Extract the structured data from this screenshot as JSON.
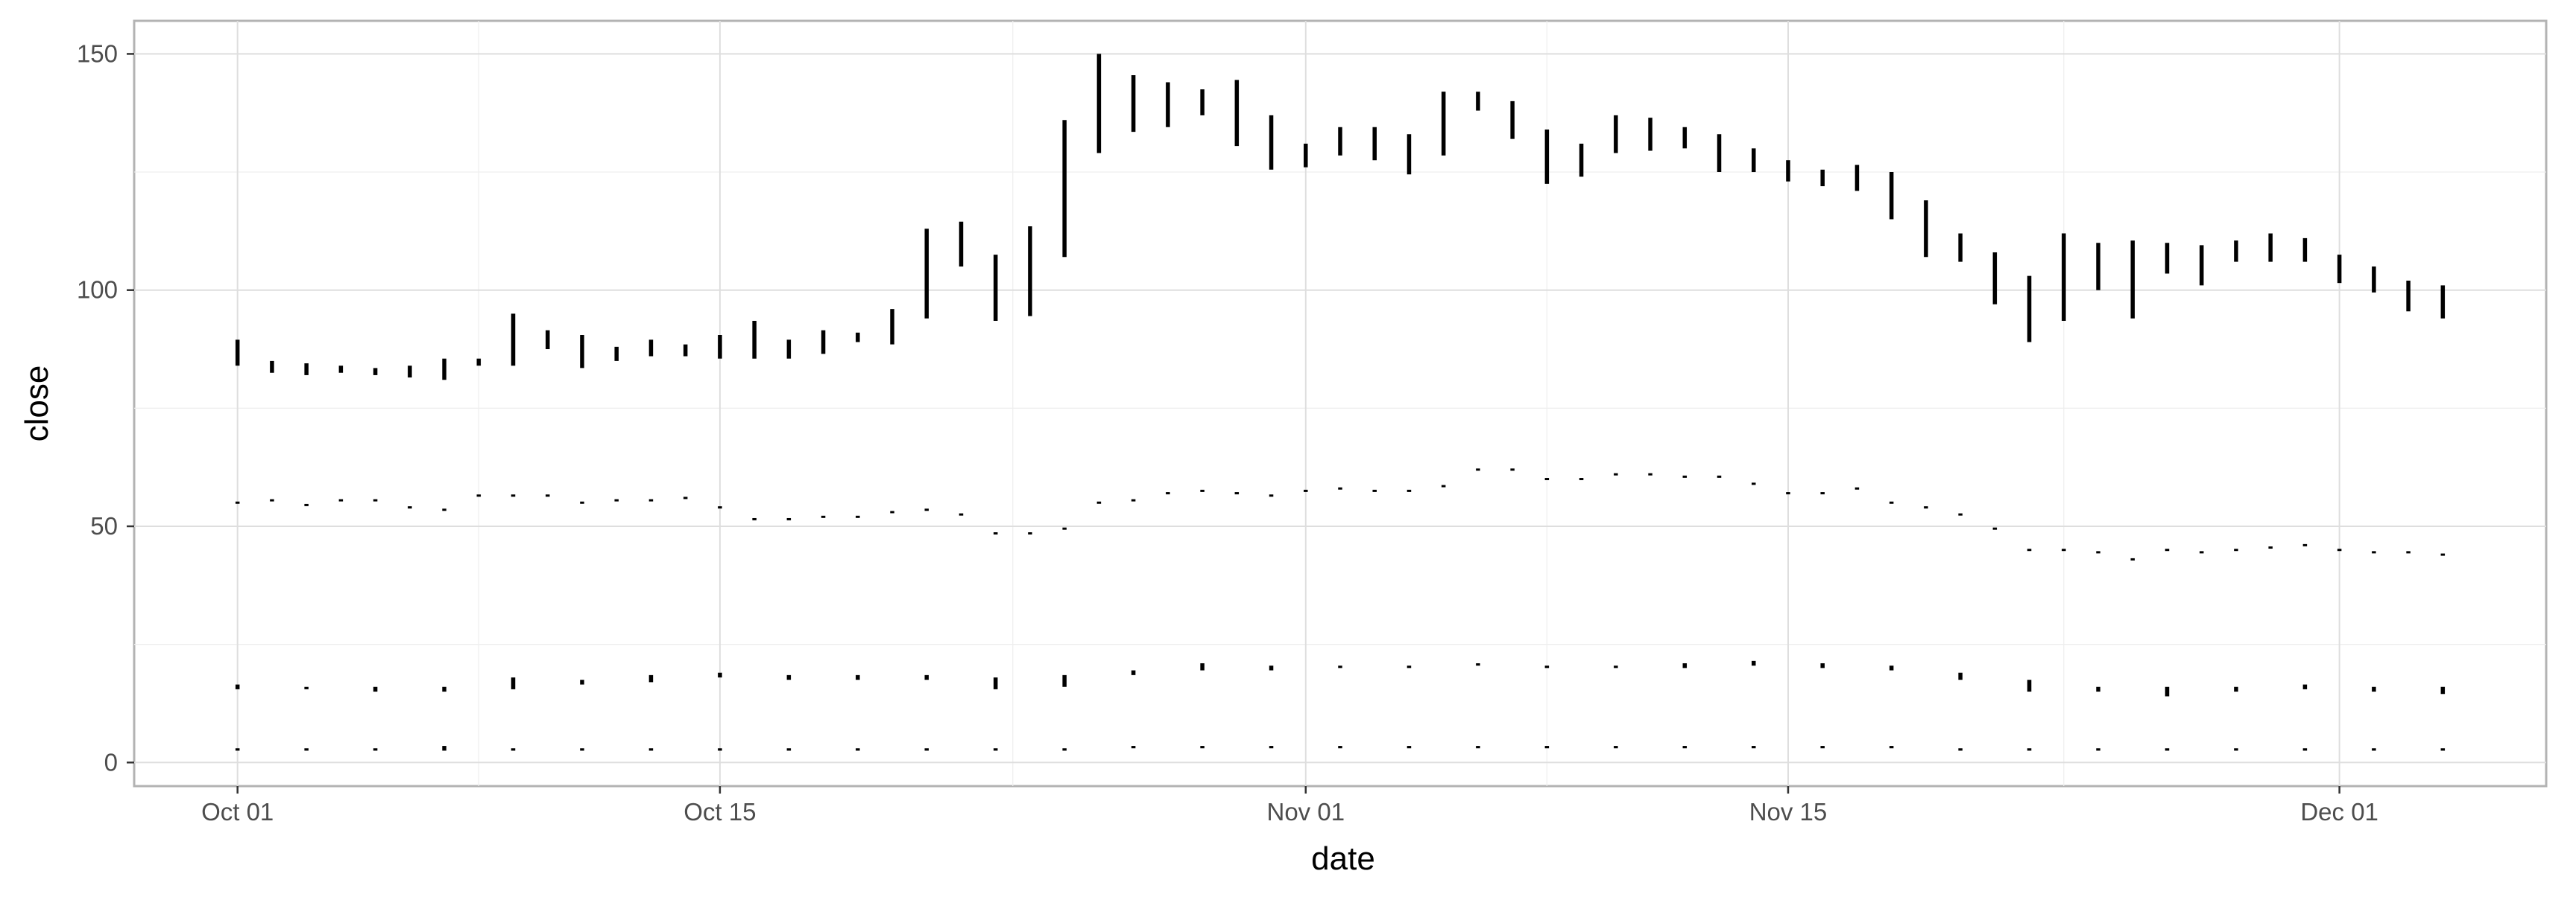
{
  "chart_data": {
    "type": "range-bar",
    "title": "",
    "xlabel": "date",
    "ylabel": "close",
    "xlim": [
      "2021-09-28",
      "2021-12-07"
    ],
    "ylim": [
      -5,
      157
    ],
    "x_ticks": [
      {
        "date": "2021-10-01",
        "label": "Oct 01"
      },
      {
        "date": "2021-10-15",
        "label": "Oct 15"
      },
      {
        "date": "2021-11-01",
        "label": "Nov 01"
      },
      {
        "date": "2021-11-15",
        "label": "Nov 15"
      },
      {
        "date": "2021-12-01",
        "label": "Dec 01"
      }
    ],
    "y_ticks": [
      0,
      50,
      100,
      150
    ],
    "grid": true,
    "legend": "none",
    "bar_color": "#000000",
    "series": [
      {
        "dates": [
          "2021-10-01",
          "2021-10-02",
          "2021-10-03",
          "2021-10-04",
          "2021-10-05",
          "2021-10-06",
          "2021-10-07",
          "2021-10-08",
          "2021-10-09",
          "2021-10-10",
          "2021-10-11",
          "2021-10-12",
          "2021-10-13",
          "2021-10-14",
          "2021-10-15",
          "2021-10-16",
          "2021-10-17",
          "2021-10-18",
          "2021-10-19",
          "2021-10-20",
          "2021-10-21",
          "2021-10-22",
          "2021-10-23",
          "2021-10-24",
          "2021-10-25",
          "2021-10-26",
          "2021-10-27",
          "2021-10-28",
          "2021-10-29",
          "2021-10-30",
          "2021-10-31",
          "2021-11-01",
          "2021-11-02",
          "2021-11-03",
          "2021-11-04",
          "2021-11-05",
          "2021-11-06",
          "2021-11-07",
          "2021-11-08",
          "2021-11-09",
          "2021-11-10",
          "2021-11-11",
          "2021-11-12",
          "2021-11-13",
          "2021-11-14",
          "2021-11-15",
          "2021-11-16",
          "2021-11-17",
          "2021-11-18",
          "2021-11-19",
          "2021-11-20",
          "2021-11-21",
          "2021-11-22",
          "2021-11-23",
          "2021-11-24",
          "2021-11-25",
          "2021-11-26",
          "2021-11-27",
          "2021-11-28",
          "2021-11-29",
          "2021-11-30",
          "2021-12-01",
          "2021-12-02",
          "2021-12-03",
          "2021-12-04"
        ],
        "low": [
          84,
          82.5,
          82,
          82.5,
          82,
          81.5,
          81,
          84,
          84,
          87.5,
          83.5,
          85,
          86,
          86,
          85.5,
          85.5,
          85.5,
          86.5,
          89,
          88.5,
          94,
          105,
          93.5,
          94.5,
          107,
          129,
          133.5,
          134.5,
          137,
          130.5,
          125.5,
          126,
          128.5,
          127.5,
          124.5,
          128.5,
          138,
          132,
          122.5,
          124,
          129,
          129.5,
          130,
          125,
          125,
          123,
          122,
          121,
          115,
          107,
          106,
          97,
          89,
          93.5,
          100,
          94,
          103.5,
          101,
          106,
          106,
          106,
          101.5,
          99.5,
          95.5,
          94
        ],
        "high": [
          89.5,
          85,
          84.5,
          84,
          83.5,
          84,
          85.5,
          85.5,
          95,
          91.5,
          90.5,
          88,
          89.5,
          88.5,
          90.5,
          93.5,
          89.5,
          91.5,
          91,
          96,
          113,
          114.5,
          107.5,
          113.5,
          136,
          150,
          145.5,
          144,
          142.5,
          144.5,
          137,
          131,
          134.5,
          134.5,
          133,
          142,
          142,
          140,
          134,
          131,
          137,
          136.5,
          134.5,
          133,
          130,
          127.5,
          125.5,
          126.5,
          125,
          119,
          112,
          108,
          103,
          112,
          110,
          110.5,
          110,
          109.5,
          110.5,
          112,
          111,
          107.5,
          105,
          102,
          101
        ]
      },
      {
        "dates": [
          "2021-10-01",
          "2021-10-02",
          "2021-10-03",
          "2021-10-04",
          "2021-10-05",
          "2021-10-06",
          "2021-10-07",
          "2021-10-08",
          "2021-10-09",
          "2021-10-10",
          "2021-10-11",
          "2021-10-12",
          "2021-10-13",
          "2021-10-14",
          "2021-10-15",
          "2021-10-16",
          "2021-10-17",
          "2021-10-18",
          "2021-10-19",
          "2021-10-20",
          "2021-10-21",
          "2021-10-22",
          "2021-10-23",
          "2021-10-24",
          "2021-10-25",
          "2021-10-26",
          "2021-10-27",
          "2021-10-28",
          "2021-10-29",
          "2021-10-30",
          "2021-10-31",
          "2021-11-01",
          "2021-11-02",
          "2021-11-03",
          "2021-11-04",
          "2021-11-05",
          "2021-11-06",
          "2021-11-07",
          "2021-11-08",
          "2021-11-09",
          "2021-11-10",
          "2021-11-11",
          "2021-11-12",
          "2021-11-13",
          "2021-11-14",
          "2021-11-15",
          "2021-11-16",
          "2021-11-17",
          "2021-11-18",
          "2021-11-19",
          "2021-11-20",
          "2021-11-21",
          "2021-11-22",
          "2021-11-23",
          "2021-11-24",
          "2021-11-25",
          "2021-11-26",
          "2021-11-27",
          "2021-11-28",
          "2021-11-29",
          "2021-11-30",
          "2021-12-01",
          "2021-12-02",
          "2021-12-03",
          "2021-12-04"
        ],
        "low": [
          55,
          55.5,
          54.5,
          55.5,
          55.5,
          54,
          53.5,
          56.5,
          56.5,
          56.5,
          55,
          55.5,
          55.5,
          56,
          54,
          51.5,
          51.5,
          52,
          52,
          53,
          53.5,
          52.5,
          48.5,
          48.5,
          49.5,
          55,
          55.5,
          57,
          57.5,
          57,
          56.5,
          57.5,
          58,
          57.5,
          57.5,
          58.5,
          62,
          62,
          60,
          60,
          61,
          61,
          60.5,
          60.5,
          59,
          57,
          57,
          58,
          55,
          54,
          52.5,
          49.5,
          45,
          45,
          44.5,
          43,
          45,
          44.5,
          45,
          45.5,
          46,
          45,
          44.5,
          44.5,
          44
        ]
      },
      {
        "dates": [
          "2021-10-01",
          "2021-10-03",
          "2021-10-05",
          "2021-10-07",
          "2021-10-09",
          "2021-10-11",
          "2021-10-13",
          "2021-10-15",
          "2021-10-17",
          "2021-10-19",
          "2021-10-21",
          "2021-10-23",
          "2021-10-25",
          "2021-10-27",
          "2021-10-29",
          "2021-10-31",
          "2021-11-02",
          "2021-11-04",
          "2021-11-06",
          "2021-11-08",
          "2021-11-10",
          "2021-11-12",
          "2021-11-14",
          "2021-11-16",
          "2021-11-18",
          "2021-11-20",
          "2021-11-22",
          "2021-11-24",
          "2021-11-26",
          "2021-11-28",
          "2021-11-30",
          "2021-12-02",
          "2021-12-04"
        ],
        "low": [
          15.5,
          15.5,
          15,
          15,
          15.5,
          16.5,
          17,
          18,
          17.5,
          17.5,
          17.5,
          15.5,
          16,
          18.5,
          19.5,
          19.5,
          20,
          20,
          20.5,
          20,
          20,
          20,
          20.5,
          20,
          19.5,
          17.5,
          15,
          15,
          14,
          15,
          15.5,
          15,
          14.5
        ],
        "high": [
          16.5,
          16,
          16,
          16,
          18,
          17.5,
          18.5,
          19,
          18.5,
          18.5,
          18.5,
          18,
          18.5,
          19.5,
          21,
          20.5,
          20.5,
          20.5,
          21,
          20.5,
          20.5,
          21,
          21.5,
          21,
          20.5,
          19,
          17.5,
          16,
          16,
          16,
          16.5,
          16,
          16
        ]
      },
      {
        "dates": [
          "2021-10-01",
          "2021-10-03",
          "2021-10-05",
          "2021-10-07",
          "2021-10-09",
          "2021-10-11",
          "2021-10-13",
          "2021-10-15",
          "2021-10-17",
          "2021-10-19",
          "2021-10-21",
          "2021-10-23",
          "2021-10-25",
          "2021-10-27",
          "2021-10-29",
          "2021-10-31",
          "2021-11-02",
          "2021-11-04",
          "2021-11-06",
          "2021-11-08",
          "2021-11-10",
          "2021-11-12",
          "2021-11-14",
          "2021-11-16",
          "2021-11-18",
          "2021-11-20",
          "2021-11-22",
          "2021-11-24",
          "2021-11-26",
          "2021-11-28",
          "2021-11-30",
          "2021-12-02",
          "2021-12-04"
        ],
        "low": [
          2.5,
          2.5,
          2.5,
          2.5,
          2.5,
          2.5,
          2.5,
          2.5,
          2.5,
          2.5,
          2.5,
          2.5,
          2.5,
          3,
          3,
          3,
          3,
          3,
          3,
          3,
          3,
          3,
          3,
          3,
          3,
          2.5,
          2.5,
          2.5,
          2.5,
          2.5,
          2.5,
          2.5,
          2.5
        ],
        "high": [
          3,
          3,
          3,
          3.5,
          3,
          3,
          3,
          3,
          3,
          3,
          3,
          3,
          3,
          3.5,
          3.5,
          3.5,
          3.5,
          3.5,
          3.5,
          3.5,
          3.5,
          3.5,
          3.5,
          3.5,
          3.5,
          3,
          3,
          3,
          3,
          3,
          3,
          3,
          3
        ]
      }
    ]
  }
}
